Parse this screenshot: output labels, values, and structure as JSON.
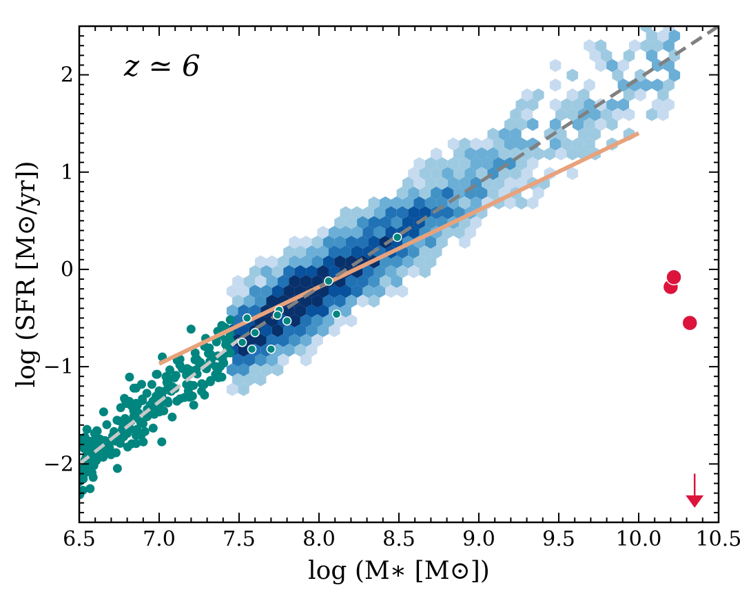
{
  "chart_data": {
    "type": "scatter",
    "title": "",
    "annotation": "z ≃ 6",
    "xlabel": "log (M∗ [M⊙])",
    "ylabel": "log (SFR [M⊙/yr])",
    "xlim": [
      6.5,
      10.5
    ],
    "ylim": [
      -2.6,
      2.5
    ],
    "x_ticks": [
      6.5,
      7.0,
      7.5,
      8.0,
      8.5,
      9.0,
      9.5,
      10.0,
      10.5
    ],
    "x_tick_labels": [
      "6.5",
      "7.0",
      "7.5",
      "8.0",
      "8.5",
      "9.0",
      "9.5",
      "10.0",
      "10.5"
    ],
    "y_ticks": [
      -2,
      -1,
      0,
      1,
      2
    ],
    "y_tick_labels": [
      "−2",
      "−1",
      "0",
      "1",
      "2"
    ],
    "colors": {
      "hexbin_scale": [
        "#e7eff9",
        "#c6dbef",
        "#9ecae1",
        "#6baed6",
        "#4292c6",
        "#2171b5",
        "#08519c",
        "#08306b"
      ],
      "teal_points": "#00857f",
      "red_points": "#dc143c",
      "orange_line": "#e8a27c",
      "dashed_dark": "#808080",
      "dashed_light": "#c8c8c8"
    },
    "series": [
      {
        "name": "orange-relation",
        "kind": "line",
        "x": [
          7.0,
          10.0
        ],
        "y": [
          -0.97,
          1.4
        ]
      },
      {
        "name": "dark-dashed-fit",
        "kind": "dashed-line",
        "x": [
          7.5,
          10.5
        ],
        "y": [
          -0.72,
          2.5
        ]
      },
      {
        "name": "light-dashed-fit",
        "kind": "dashed-line",
        "x": [
          6.5,
          7.5
        ],
        "y": [
          -2.0,
          -0.72
        ]
      },
      {
        "name": "red-galaxies",
        "kind": "scatter",
        "x": [
          10.2,
          10.22,
          10.32
        ],
        "y": [
          -0.18,
          -0.08,
          -0.55
        ]
      },
      {
        "name": "red-upper-limit",
        "kind": "arrow",
        "x": [
          10.35
        ],
        "y": [
          -2.1
        ],
        "to_y": [
          -2.45
        ]
      },
      {
        "name": "teal-dwarfs-outlined",
        "kind": "scatter",
        "x": [
          7.55,
          7.6,
          7.52,
          7.58,
          7.7,
          7.75,
          7.8,
          7.74,
          8.06,
          8.11,
          8.49
        ],
        "y": [
          -0.5,
          -0.65,
          -0.75,
          -0.82,
          -0.82,
          -0.42,
          -0.53,
          -0.47,
          -0.12,
          -0.46,
          0.33
        ]
      }
    ]
  }
}
